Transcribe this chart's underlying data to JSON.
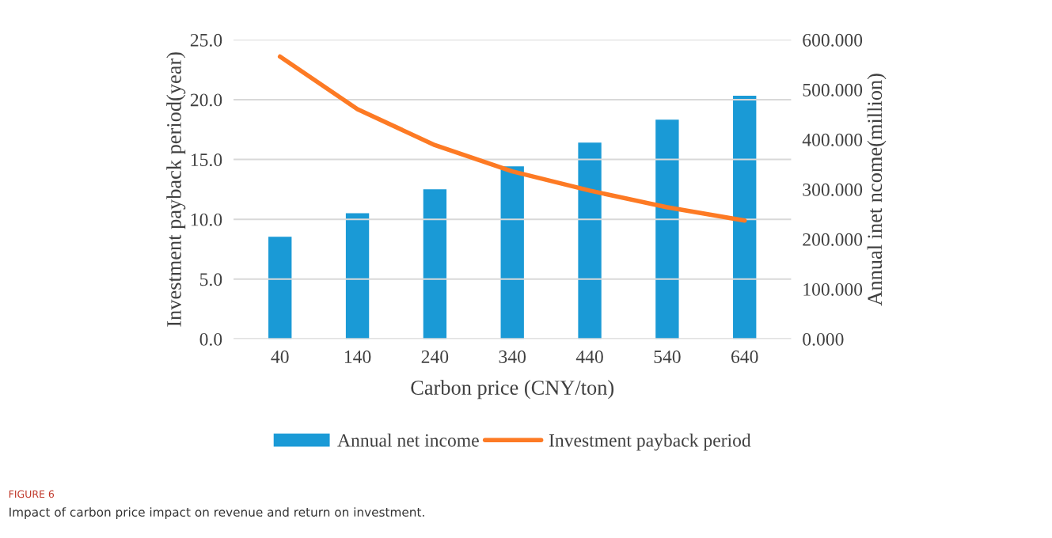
{
  "chart_data": {
    "type": "bar",
    "xlabel": "Carbon price (CNY/ton)",
    "ylabel": "Investment payback period(year)",
    "y2label": "Annual inet ncome(million)",
    "categories": [
      "40",
      "140",
      "240",
      "340",
      "440",
      "540",
      "640"
    ],
    "series": [
      {
        "name": "Annual net income",
        "axis": "y2",
        "color": "#1a9ad6",
        "values": [
          205,
          252,
          300,
          346,
          394,
          440,
          488
        ]
      },
      {
        "name": "Investment payback period",
        "type": "line",
        "axis": "y",
        "color": "#fd7a24",
        "values": [
          23.6,
          19.2,
          16.2,
          14.0,
          12.4,
          11.0,
          9.9
        ]
      }
    ],
    "ylim": [
      0,
      25
    ],
    "yticks": [
      {
        "value": 0,
        "label": "0.0"
      },
      {
        "value": 5,
        "label": "5.0"
      },
      {
        "value": 10,
        "label": "10.0"
      },
      {
        "value": 15,
        "label": "15.0"
      },
      {
        "value": 20,
        "label": "20.0"
      },
      {
        "value": 25,
        "label": "25.0"
      }
    ],
    "y2lim": [
      0,
      600
    ],
    "y2ticks": [
      {
        "value": 0,
        "label": "0.000"
      },
      {
        "value": 100,
        "label": "100.000"
      },
      {
        "value": 200,
        "label": "200.000"
      },
      {
        "value": 300,
        "label": "300.000"
      },
      {
        "value": 400,
        "label": "400.000"
      },
      {
        "value": 500,
        "label": "500.000"
      },
      {
        "value": 600,
        "label": "600.000"
      }
    ],
    "grid": "y",
    "legend": "bottom",
    "marker": "none",
    "annotations": [
      "FIGURE 6",
      "Impact of carbon price impact on revenue and return on investment."
    ]
  }
}
